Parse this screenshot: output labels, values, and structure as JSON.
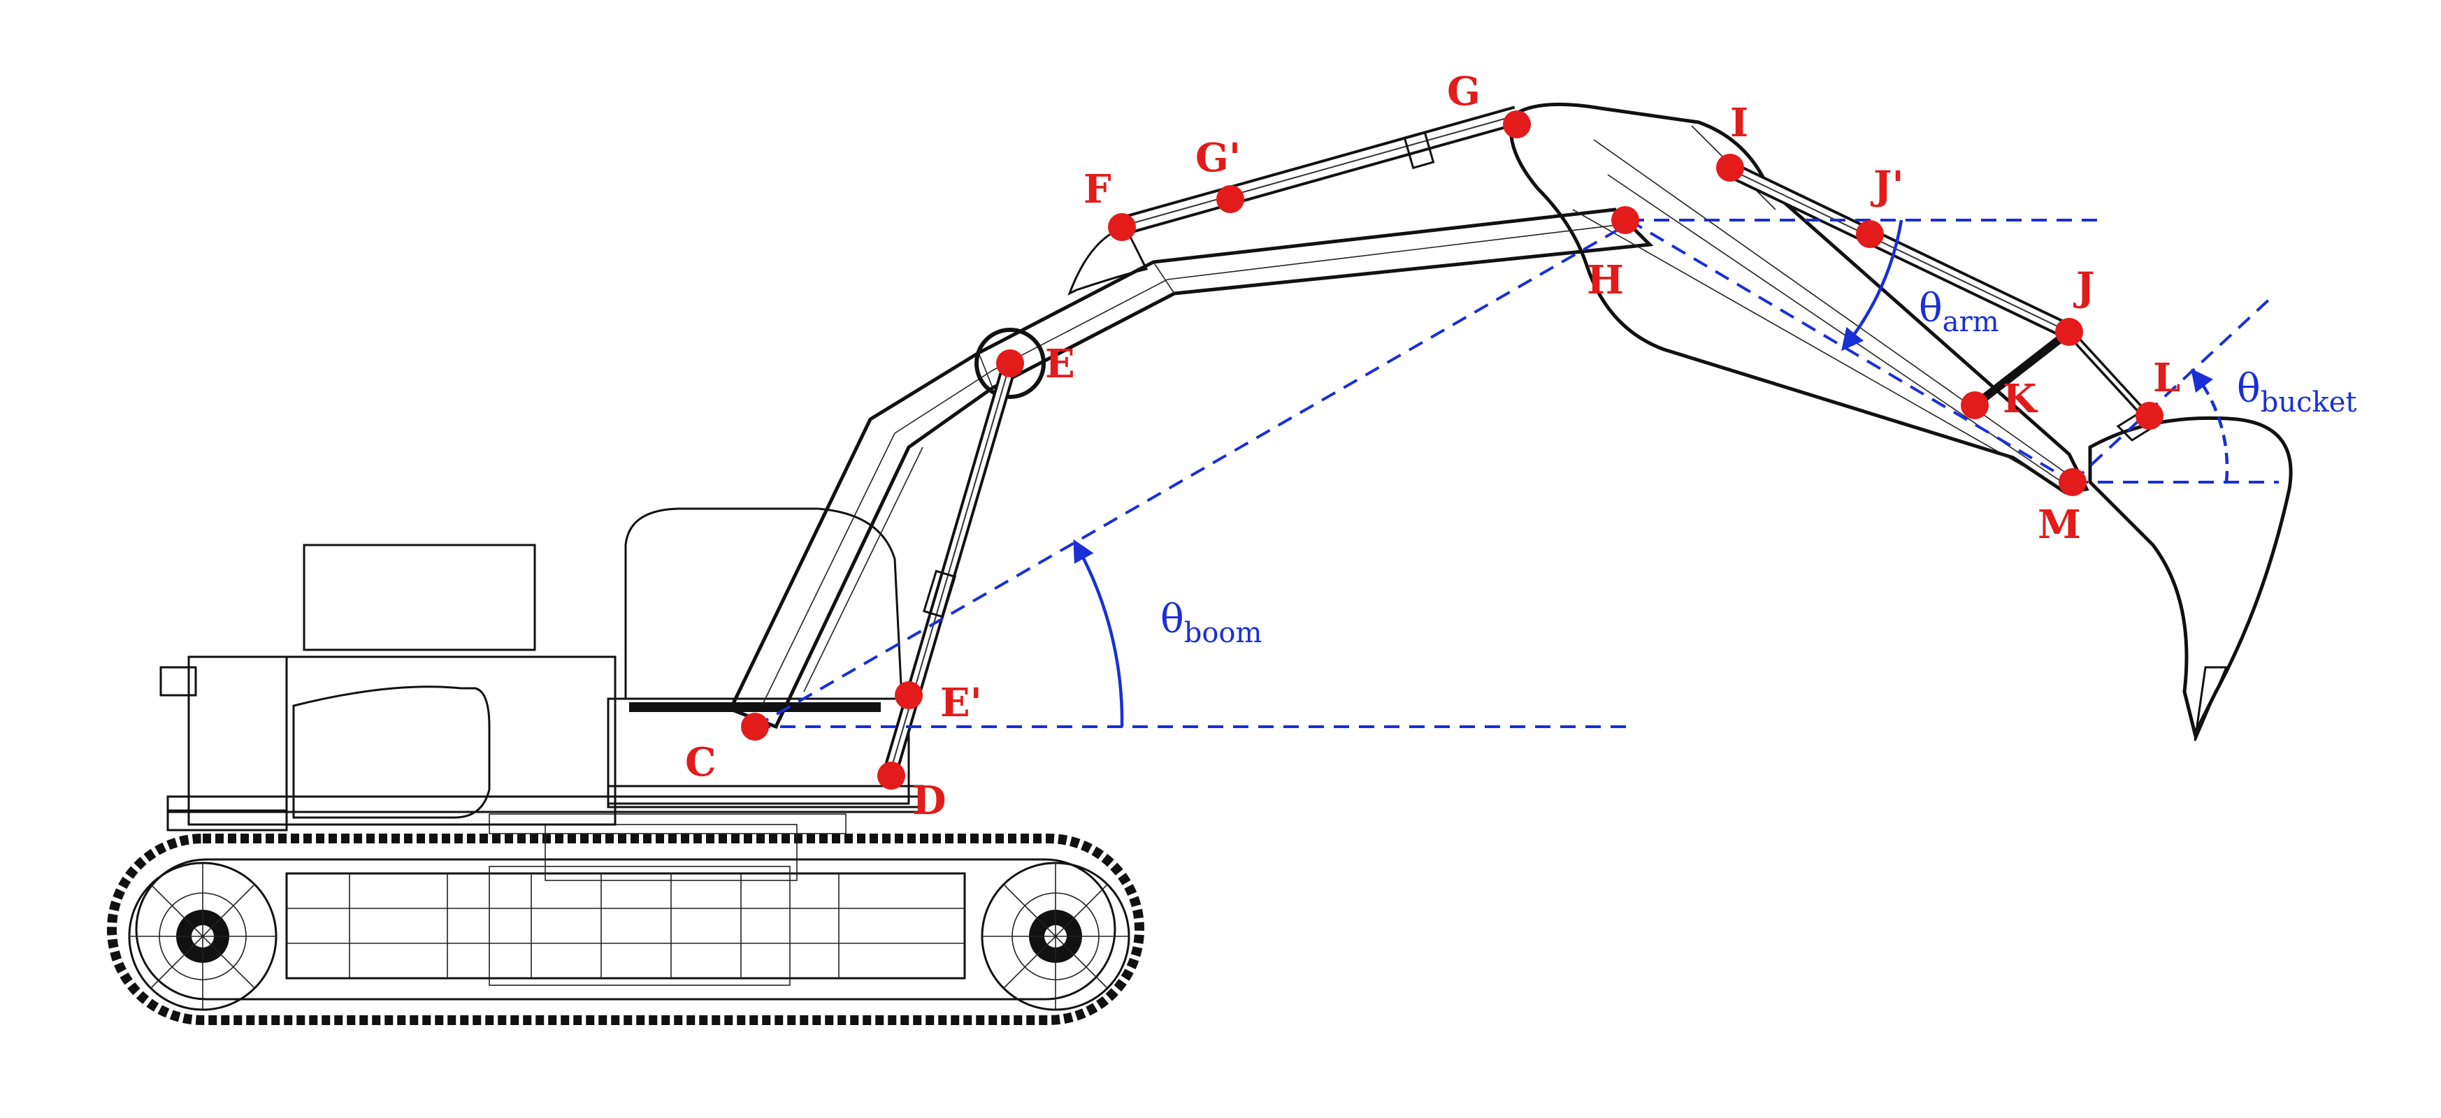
{
  "diagram": {
    "colors": {
      "joint": "#e31b1b",
      "label": "#e31b1b",
      "angle": "#1a2fd6",
      "wireframe": "#111111"
    },
    "joints": [
      {
        "id": "C",
        "label": "C"
      },
      {
        "id": "D",
        "label": "D"
      },
      {
        "id": "E",
        "label": "E"
      },
      {
        "id": "E_prime",
        "label": "E'"
      },
      {
        "id": "F",
        "label": "F"
      },
      {
        "id": "G",
        "label": "G"
      },
      {
        "id": "G_prime",
        "label": "G'"
      },
      {
        "id": "H",
        "label": "H"
      },
      {
        "id": "I",
        "label": "I"
      },
      {
        "id": "J",
        "label": "J"
      },
      {
        "id": "J_prime",
        "label": "J'"
      },
      {
        "id": "K",
        "label": "K"
      },
      {
        "id": "L",
        "label": "L"
      },
      {
        "id": "M",
        "label": "M"
      }
    ],
    "angles": {
      "boom": {
        "symbol": "θ",
        "subscript": "boom"
      },
      "arm": {
        "symbol": "θ",
        "subscript": "arm"
      },
      "bucket": {
        "symbol": "θ",
        "subscript": "bucket"
      }
    }
  }
}
